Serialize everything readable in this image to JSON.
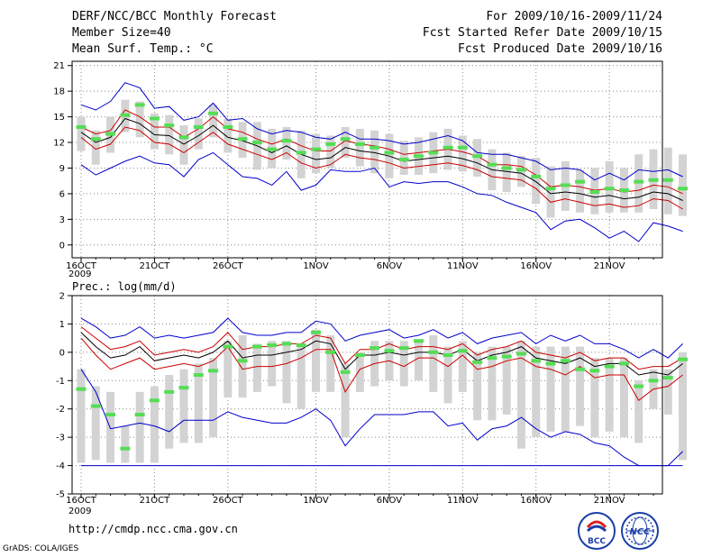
{
  "header": {
    "title": "DERF/NCC/BCC Monthly Forecast",
    "member_size": "Member Size=40",
    "variable": "Mean Surf. Temp.: °C",
    "forecast_range": "For 2009/10/16-2009/11/24",
    "refer_date": "Fcst Started Refer Date 2009/10/15",
    "produced_date": "Fcst Produced Date 2009/10/16"
  },
  "footer": {
    "url": "http://cmdp.ncc.cma.gov.cn",
    "grads": "GrADS: COLA/IGES",
    "logo_bcc": "BCC",
    "logo_ncc": "NCC"
  },
  "colors": {
    "box": "#d3d3d3",
    "median": "#55dd55",
    "mean": "#000000",
    "inner_band": "#cc0000",
    "outer_band": "#0000cc",
    "grid": "#888888"
  },
  "chart_data": [
    {
      "type": "line",
      "title": "Mean Surf. Temp.: °C",
      "ylim": [
        -1.5,
        21.5
      ],
      "yticks": [
        0,
        3,
        6,
        9,
        12,
        15,
        18,
        21
      ],
      "x_start": 16,
      "x_end": 55,
      "xticks": [
        {
          "day": 16,
          "label": "16OCT",
          "sub": "2009"
        },
        {
          "day": 21,
          "label": "21OCT",
          "sub": ""
        },
        {
          "day": 26,
          "label": "26OCT",
          "sub": ""
        },
        {
          "day": 32,
          "label": "1NOV",
          "sub": ""
        },
        {
          "day": 37,
          "label": "6NOV",
          "sub": ""
        },
        {
          "day": 42,
          "label": "11NOV",
          "sub": ""
        },
        {
          "day": 47,
          "label": "16NOV",
          "sub": ""
        },
        {
          "day": 52,
          "label": "21NOV",
          "sub": ""
        }
      ],
      "series": [
        {
          "name": "ensemble-mean",
          "values": [
            13.2,
            12.0,
            12.6,
            14.8,
            14.2,
            12.9,
            12.8,
            11.8,
            12.8,
            14.0,
            12.6,
            12.2,
            11.6,
            10.8,
            11.6,
            10.6,
            10.0,
            10.2,
            11.4,
            11.0,
            10.8,
            10.4,
            9.8,
            10.0,
            10.2,
            10.4,
            10.1,
            9.6,
            8.8,
            8.6,
            8.4,
            7.4,
            6.0,
            6.2,
            6.0,
            5.6,
            5.8,
            5.4,
            5.6,
            6.2,
            6.0,
            5.2
          ]
        },
        {
          "name": "inner-upper",
          "values": [
            13.8,
            13.0,
            13.4,
            15.8,
            15.0,
            13.8,
            13.8,
            12.6,
            13.6,
            15.0,
            13.6,
            13.2,
            12.4,
            11.8,
            12.4,
            11.6,
            11.0,
            11.0,
            12.2,
            11.8,
            11.6,
            11.2,
            10.6,
            10.8,
            11.0,
            11.2,
            10.9,
            10.4,
            9.4,
            9.4,
            9.2,
            8.2,
            6.8,
            7.0,
            6.8,
            6.4,
            6.6,
            6.2,
            6.4,
            7.0,
            6.8,
            6.0
          ]
        },
        {
          "name": "inner-lower",
          "values": [
            12.6,
            11.2,
            11.8,
            13.8,
            13.4,
            12.0,
            11.8,
            10.8,
            12.0,
            13.2,
            11.8,
            11.2,
            10.6,
            10.0,
            10.8,
            9.6,
            9.0,
            9.4,
            10.6,
            10.2,
            10.0,
            9.6,
            9.0,
            9.2,
            9.4,
            9.6,
            9.3,
            8.8,
            8.0,
            7.8,
            7.6,
            6.6,
            5.0,
            5.4,
            5.0,
            4.6,
            4.8,
            4.4,
            4.6,
            5.4,
            5.2,
            4.2
          ]
        },
        {
          "name": "outer-upper",
          "values": [
            16.4,
            15.8,
            16.8,
            19.0,
            18.4,
            16.0,
            16.2,
            14.6,
            15.0,
            16.6,
            14.6,
            14.8,
            13.6,
            13.0,
            13.4,
            13.2,
            12.6,
            12.4,
            13.2,
            12.4,
            12.4,
            12.2,
            11.8,
            12.0,
            12.4,
            12.8,
            12.2,
            10.8,
            10.6,
            10.6,
            10.2,
            9.8,
            8.8,
            9.0,
            8.8,
            7.6,
            8.4,
            7.6,
            8.8,
            8.6,
            8.8,
            8.0
          ]
        },
        {
          "name": "outer-lower",
          "values": [
            9.4,
            8.2,
            9.0,
            9.8,
            10.4,
            9.6,
            9.4,
            8.0,
            10.0,
            10.8,
            9.4,
            8.0,
            7.8,
            7.0,
            8.6,
            6.4,
            7.0,
            8.8,
            8.6,
            8.6,
            9.0,
            6.8,
            7.4,
            7.2,
            7.4,
            7.4,
            6.8,
            6.0,
            5.8,
            5.0,
            4.4,
            3.8,
            1.8,
            2.8,
            3.0,
            2.0,
            0.8,
            1.6,
            0.4,
            2.6,
            2.2,
            1.6
          ]
        }
      ],
      "box_top": [
        15.0,
        13.4,
        15.0,
        17.0,
        16.8,
        15.4,
        15.2,
        14.0,
        14.8,
        16.4,
        14.8,
        14.4,
        14.4,
        13.6,
        13.8,
        13.4,
        13.0,
        12.8,
        13.8,
        13.6,
        13.4,
        13.0,
        12.2,
        12.6,
        13.2,
        13.6,
        12.8,
        12.4,
        11.2,
        10.8,
        10.4,
        10.2,
        9.2,
        9.8,
        8.8,
        9.0,
        9.8,
        9.0,
        10.6,
        11.2,
        11.4,
        10.6
      ],
      "box_bottom": [
        11.0,
        9.4,
        10.8,
        13.2,
        12.6,
        11.2,
        10.6,
        9.4,
        11.2,
        12.6,
        10.8,
        10.2,
        8.8,
        9.0,
        10.0,
        7.8,
        8.4,
        9.0,
        10.2,
        9.2,
        8.4,
        7.8,
        8.2,
        8.2,
        8.4,
        8.8,
        8.6,
        8.0,
        6.4,
        6.2,
        6.8,
        4.8,
        3.2,
        4.0,
        3.8,
        3.6,
        3.8,
        3.8,
        3.8,
        4.2,
        3.6,
        3.4
      ],
      "median": [
        13.8,
        12.4,
        13.0,
        15.2,
        16.4,
        14.8,
        14.0,
        12.6,
        13.8,
        15.4,
        13.8,
        12.4,
        12.0,
        11.2,
        12.2,
        10.8,
        11.2,
        11.8,
        12.4,
        11.8,
        11.4,
        10.8,
        10.0,
        10.4,
        10.8,
        11.4,
        11.4,
        10.4,
        9.4,
        9.0,
        8.8,
        8.0,
        6.6,
        7.0,
        7.4,
        6.2,
        6.6,
        6.4,
        7.4,
        7.6,
        7.6,
        6.6
      ]
    },
    {
      "type": "line",
      "title": "Prec.: log(mm/d)",
      "ylim": [
        -5,
        2
      ],
      "yticks": [
        -5,
        -4,
        -3,
        -2,
        -1,
        0,
        1,
        2
      ],
      "x_start": 16,
      "x_end": 55,
      "xticks": [
        {
          "day": 16,
          "label": "16OCT",
          "sub": "2009"
        },
        {
          "day": 21,
          "label": "21OCT",
          "sub": ""
        },
        {
          "day": 26,
          "label": "26OCT",
          "sub": ""
        },
        {
          "day": 32,
          "label": "1NOV",
          "sub": ""
        },
        {
          "day": 37,
          "label": "6NOV",
          "sub": ""
        },
        {
          "day": 42,
          "label": "11NOV",
          "sub": ""
        },
        {
          "day": 47,
          "label": "16NOV",
          "sub": ""
        },
        {
          "day": 52,
          "label": "21NOV",
          "sub": ""
        }
      ],
      "series": [
        {
          "name": "ensemble-mean",
          "values": [
            0.7,
            0.2,
            -0.2,
            -0.1,
            0.2,
            -0.3,
            -0.2,
            -0.1,
            -0.2,
            0.0,
            0.4,
            -0.2,
            -0.1,
            -0.1,
            0.0,
            0.1,
            0.4,
            0.3,
            -0.6,
            -0.1,
            -0.1,
            0.0,
            -0.1,
            0.0,
            0.0,
            -0.1,
            0.1,
            -0.3,
            -0.1,
            0.0,
            0.2,
            -0.2,
            -0.3,
            -0.4,
            -0.2,
            -0.5,
            -0.4,
            -0.4,
            -0.8,
            -0.7,
            -0.8,
            -0.4
          ]
        },
        {
          "name": "inner-upper",
          "values": [
            0.9,
            0.5,
            0.1,
            0.2,
            0.4,
            -0.1,
            0.0,
            0.1,
            0.0,
            0.2,
            0.7,
            0.1,
            0.2,
            0.2,
            0.3,
            0.3,
            0.6,
            0.5,
            -0.4,
            0.1,
            0.1,
            0.3,
            0.1,
            0.2,
            0.2,
            0.1,
            0.3,
            -0.1,
            0.1,
            0.2,
            0.4,
            0.0,
            -0.1,
            -0.2,
            0.0,
            -0.3,
            -0.2,
            -0.2,
            -0.6,
            -0.5,
            -0.5,
            -0.2
          ]
        },
        {
          "name": "inner-lower",
          "values": [
            0.5,
            -0.1,
            -0.6,
            -0.4,
            -0.2,
            -0.6,
            -0.5,
            -0.4,
            -0.5,
            -0.3,
            0.2,
            -0.6,
            -0.5,
            -0.5,
            -0.4,
            -0.2,
            0.1,
            0.1,
            -1.4,
            -0.6,
            -0.4,
            -0.3,
            -0.5,
            -0.2,
            -0.2,
            -0.5,
            -0.1,
            -0.6,
            -0.5,
            -0.3,
            -0.2,
            -0.5,
            -0.6,
            -0.8,
            -0.5,
            -0.9,
            -0.8,
            -0.8,
            -1.7,
            -1.3,
            -1.2,
            -0.8
          ]
        },
        {
          "name": "outer-upper",
          "values": [
            1.2,
            0.9,
            0.5,
            0.6,
            0.9,
            0.5,
            0.6,
            0.5,
            0.6,
            0.7,
            1.2,
            0.7,
            0.6,
            0.6,
            0.7,
            0.7,
            1.1,
            1.0,
            0.4,
            0.6,
            0.7,
            0.8,
            0.5,
            0.6,
            0.8,
            0.5,
            0.7,
            0.3,
            0.5,
            0.6,
            0.7,
            0.3,
            0.6,
            0.4,
            0.6,
            0.3,
            0.3,
            0.1,
            -0.2,
            0.1,
            -0.2,
            0.3
          ]
        },
        {
          "name": "outer-lower",
          "values": [
            -0.6,
            -1.4,
            -2.7,
            -2.6,
            -2.5,
            -2.6,
            -2.8,
            -2.4,
            -2.4,
            -2.4,
            -2.1,
            -2.3,
            -2.4,
            -2.5,
            -2.5,
            -2.3,
            -2.0,
            -2.4,
            -3.3,
            -2.7,
            -2.2,
            -2.2,
            -2.2,
            -2.1,
            -2.1,
            -2.6,
            -2.5,
            -3.1,
            -2.7,
            -2.6,
            -2.3,
            -2.7,
            -3.0,
            -2.8,
            -2.9,
            -3.2,
            -3.3,
            -3.7,
            -4.0,
            -4.0,
            -4.0,
            -3.5
          ]
        },
        {
          "name": "lower-bound",
          "values": [
            -4.0,
            -4.0,
            -4.0,
            -4.0,
            -4.0,
            -4.0,
            -4.0,
            -4.0,
            -4.0,
            -4.0,
            -4.0,
            -4.0,
            -4.0,
            -4.0,
            -4.0,
            -4.0,
            -4.0,
            -4.0,
            -4.0,
            -4.0,
            -4.0,
            -4.0,
            -4.0,
            -4.0,
            -4.0,
            -4.0,
            -4.0,
            -4.0,
            -4.0,
            -4.0,
            -4.0,
            -4.0,
            -4.0,
            -4.0,
            -4.0,
            -4.0,
            -4.0,
            -4.0,
            -4.0,
            -4.0,
            -4.0,
            -4.0
          ]
        }
      ],
      "box_top": [
        -0.6,
        -1.2,
        -1.4,
        -2.6,
        -1.4,
        -1.2,
        -0.8,
        -0.6,
        -0.4,
        -0.2,
        0.4,
        0.6,
        0.3,
        0.4,
        0.4,
        0.3,
        0.8,
        0.6,
        -0.4,
        0.0,
        0.4,
        0.4,
        0.4,
        0.4,
        0.6,
        0.2,
        0.4,
        0.0,
        0.2,
        0.2,
        0.4,
        0.2,
        0.2,
        0.2,
        0.2,
        -0.2,
        -0.2,
        -0.2,
        -1.0,
        -0.6,
        -0.6,
        0.0
      ],
      "box_bottom": [
        -3.9,
        -3.8,
        -3.9,
        -3.9,
        -3.9,
        -3.9,
        -3.4,
        -3.2,
        -3.2,
        -3.0,
        -1.6,
        -1.6,
        -1.4,
        -1.2,
        -1.8,
        -2.0,
        -1.4,
        -1.4,
        -3.0,
        -1.4,
        -1.2,
        -1.0,
        -1.2,
        -1.0,
        -1.4,
        -1.8,
        -1.4,
        -2.4,
        -2.4,
        -2.2,
        -3.4,
        -3.0,
        -2.8,
        -2.8,
        -2.6,
        -3.0,
        -2.8,
        -3.0,
        -3.2,
        -2.0,
        -2.2,
        -3.8
      ],
      "median": [
        -1.3,
        -1.9,
        -2.2,
        -3.4,
        -2.2,
        -1.7,
        -1.4,
        -1.25,
        -0.8,
        -0.65,
        0.2,
        -0.3,
        0.2,
        0.25,
        0.3,
        0.25,
        0.7,
        0.0,
        -0.7,
        -0.1,
        0.15,
        0.05,
        0.15,
        0.4,
        0.0,
        -0.1,
        0.05,
        -0.35,
        -0.2,
        -0.15,
        -0.05,
        -0.3,
        -0.4,
        -0.3,
        -0.6,
        -0.65,
        -0.5,
        -0.4,
        -1.2,
        -1.0,
        -0.9,
        -0.25
      ]
    }
  ]
}
